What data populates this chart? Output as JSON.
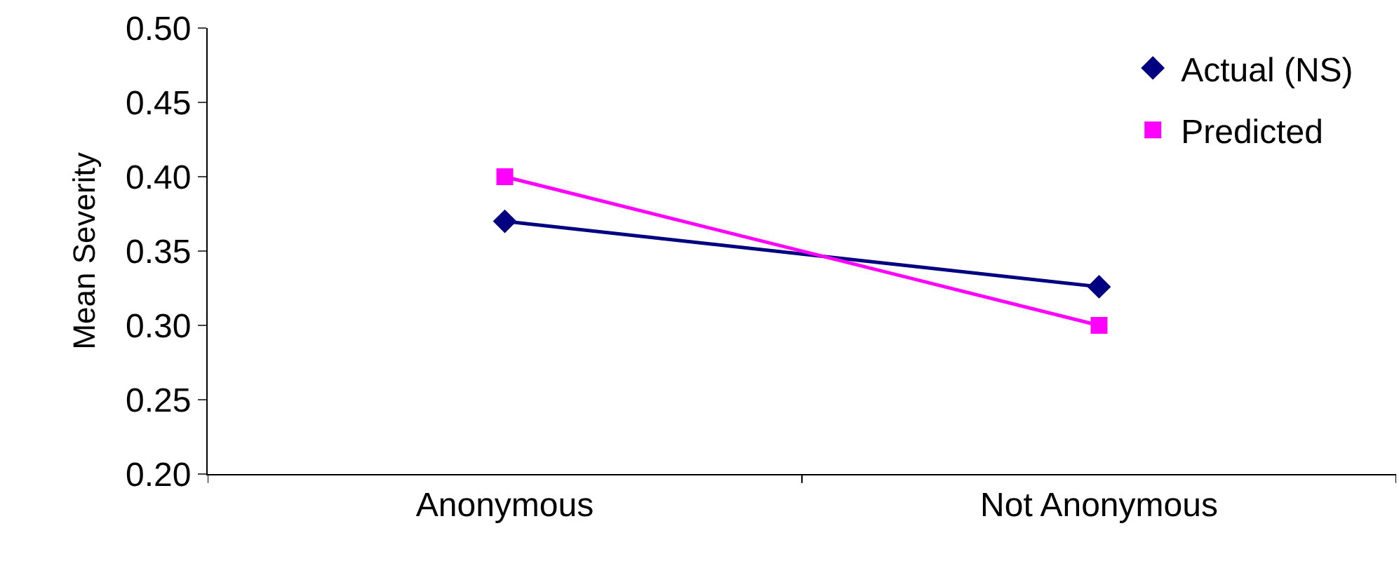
{
  "chart_data": {
    "type": "line",
    "ylabel": "Mean Severity",
    "categories": [
      "Anonymous",
      "Not Anonymous"
    ],
    "series": [
      {
        "name": "Actual (NS)",
        "color": "#000080",
        "marker": "diamond",
        "values": [
          0.37,
          0.326
        ]
      },
      {
        "name": "Predicted",
        "color": "#ff00ff",
        "marker": "square",
        "values": [
          0.4,
          0.3
        ]
      }
    ],
    "ylim": [
      0.2,
      0.5
    ],
    "yticks": [
      {
        "value": 0.2,
        "label": "0.20"
      },
      {
        "value": 0.25,
        "label": "0.25"
      },
      {
        "value": 0.3,
        "label": "0.30"
      },
      {
        "value": 0.35,
        "label": "0.35"
      },
      {
        "value": 0.4,
        "label": "0.40"
      },
      {
        "value": 0.45,
        "label": "0.45"
      },
      {
        "value": 0.5,
        "label": "0.50"
      }
    ],
    "legend": "top right",
    "line_style": "solid"
  }
}
